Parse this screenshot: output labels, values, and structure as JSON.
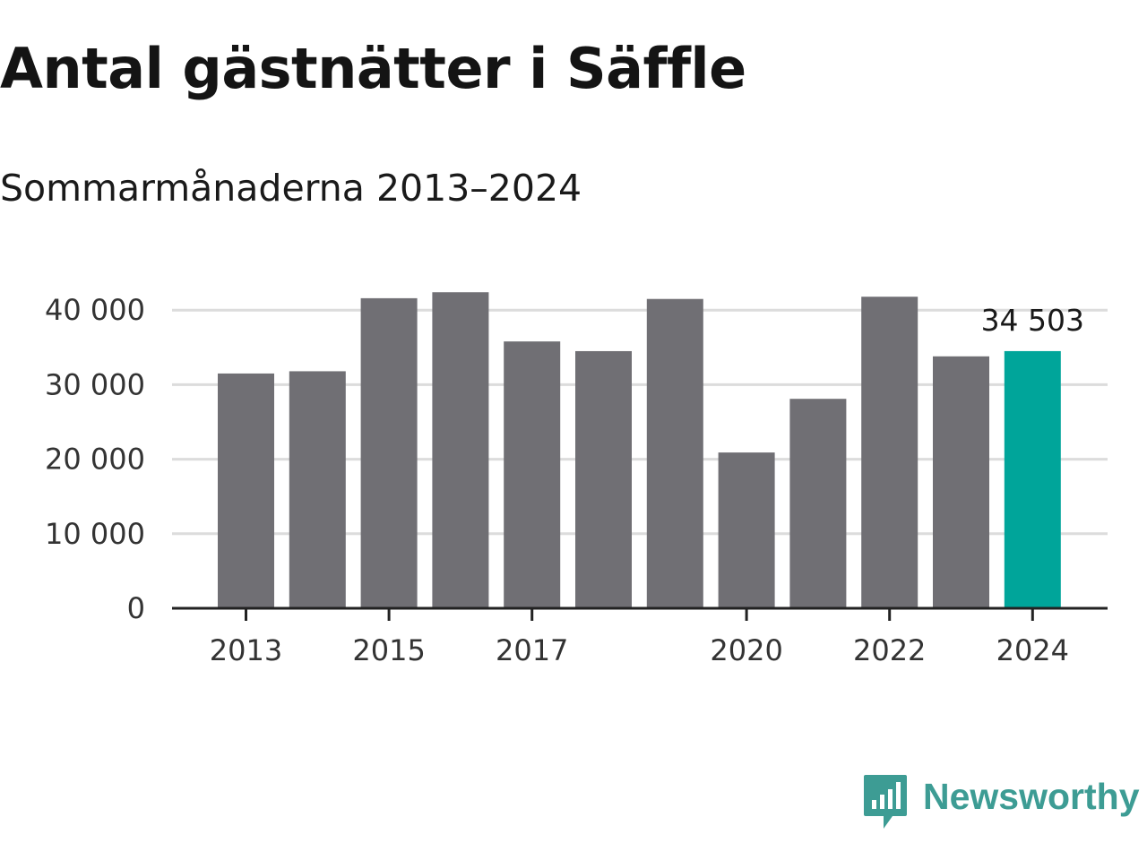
{
  "title": "Antal gästnätter i Säffle",
  "subtitle": "Sommarmånaderna 2013–2024",
  "brand": {
    "name": "Newsworthy",
    "icon": "bar-chart-speech-bubble-icon",
    "color": "#3d9c94"
  },
  "colors": {
    "bar": "#706f74",
    "highlight": "#00a59a",
    "grid": "#dcdcdc",
    "axis": "#222222"
  },
  "chart_data": {
    "type": "bar",
    "title": "Antal gästnätter i Säffle",
    "subtitle": "Sommarmånaderna 2013–2024",
    "xlabel": "",
    "ylabel": "",
    "categories": [
      "2013",
      "2014",
      "2015",
      "2016",
      "2017",
      "2018",
      "2019",
      "2020",
      "2021",
      "2022",
      "2023",
      "2024"
    ],
    "values": [
      31500,
      31800,
      41600,
      42400,
      35800,
      34500,
      41500,
      20900,
      28100,
      41800,
      33800,
      34503
    ],
    "ylim": [
      0,
      43000
    ],
    "yticks": [
      0,
      10000,
      20000,
      30000,
      40000
    ],
    "ytick_labels": [
      "0",
      "10 000",
      "20 000",
      "30 000",
      "40 000"
    ],
    "xtick_labels": [
      "2013",
      "2015",
      "2017",
      "2020",
      "2022",
      "2024"
    ],
    "highlight_category": "2024",
    "annotation": "34 503",
    "grid": true,
    "legend": "none"
  }
}
